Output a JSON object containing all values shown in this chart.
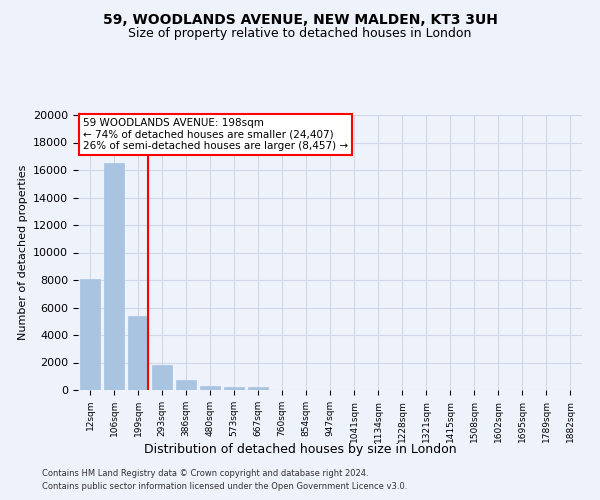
{
  "title": "59, WOODLANDS AVENUE, NEW MALDEN, KT3 3UH",
  "subtitle": "Size of property relative to detached houses in London",
  "xlabel": "Distribution of detached houses by size in London",
  "ylabel": "Number of detached properties",
  "annotation_line1": "59 WOODLANDS AVENUE: 198sqm",
  "annotation_line2": "← 74% of detached houses are smaller (24,407)",
  "annotation_line3": "26% of semi-detached houses are larger (8,457) →",
  "footer_line1": "Contains HM Land Registry data © Crown copyright and database right 2024.",
  "footer_line2": "Contains public sector information licensed under the Open Government Licence v3.0.",
  "bar_labels": [
    "12sqm",
    "106sqm",
    "199sqm",
    "293sqm",
    "386sqm",
    "480sqm",
    "573sqm",
    "667sqm",
    "760sqm",
    "854sqm",
    "947sqm",
    "1041sqm",
    "1134sqm",
    "1228sqm",
    "1321sqm",
    "1415sqm",
    "1508sqm",
    "1602sqm",
    "1695sqm",
    "1789sqm",
    "1882sqm"
  ],
  "bar_values": [
    8100,
    16500,
    5350,
    1850,
    750,
    325,
    250,
    210,
    0,
    0,
    0,
    0,
    0,
    0,
    0,
    0,
    0,
    0,
    0,
    0,
    0
  ],
  "bar_color": "#a8c4e0",
  "bar_edge_color": "#a8c4e0",
  "red_line_index": 2,
  "ylim": [
    0,
    20000
  ],
  "yticks": [
    0,
    2000,
    4000,
    6000,
    8000,
    10000,
    12000,
    14000,
    16000,
    18000,
    20000
  ],
  "grid_color": "#d0d8e8",
  "background_color": "#eef2fb",
  "title_fontsize": 10,
  "subtitle_fontsize": 9
}
